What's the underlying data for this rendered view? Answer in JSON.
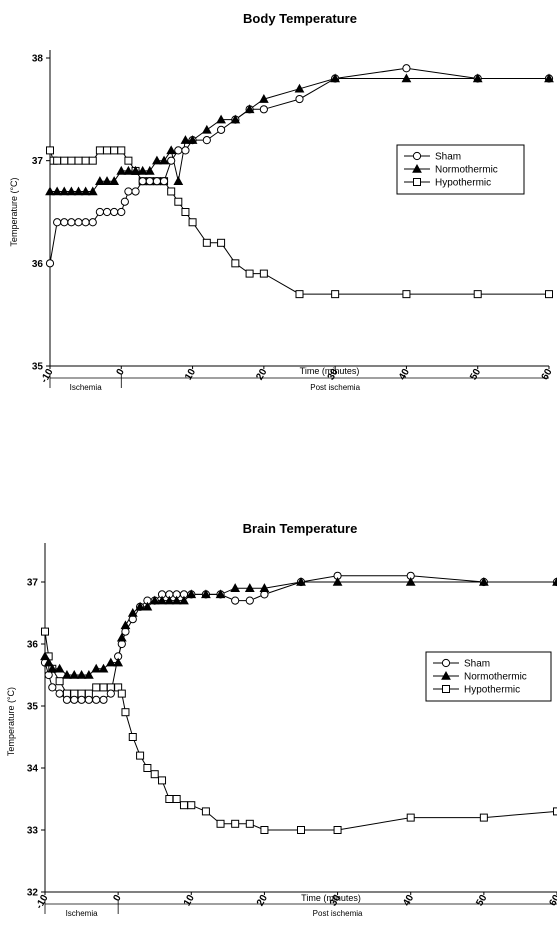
{
  "chart_data": [
    {
      "type": "line",
      "title": "Body Temperature",
      "xlabel": "Time (minutes)",
      "ylabel": "Temperature (°C)",
      "xlim": [
        -10,
        60
      ],
      "ylim": [
        35,
        38
      ],
      "xticks": [
        "-10",
        "0",
        "10",
        "20",
        "30",
        "40",
        "50",
        "60"
      ],
      "yticks": [
        "35",
        "36",
        "37",
        "38"
      ],
      "phases": [
        "Ischemia",
        "Post ischemia"
      ],
      "legend_position": "right",
      "series": [
        {
          "name": "Sham",
          "marker": "circle",
          "x": [
            -10,
            -9,
            -8,
            -7,
            -6,
            -5,
            -4,
            -3,
            -2,
            -1,
            0,
            0.5,
            1,
            2,
            3,
            4,
            5,
            6,
            7,
            8,
            9,
            10,
            12,
            14,
            16,
            18,
            20,
            25,
            30,
            40,
            50,
            60
          ],
          "y": [
            36.0,
            36.4,
            36.4,
            36.4,
            36.4,
            36.4,
            36.4,
            36.5,
            36.5,
            36.5,
            36.5,
            36.6,
            36.7,
            36.7,
            36.8,
            36.8,
            36.8,
            36.8,
            37.0,
            37.1,
            37.1,
            37.2,
            37.2,
            37.3,
            37.4,
            37.5,
            37.5,
            37.6,
            37.8,
            37.9,
            37.8,
            37.8
          ]
        },
        {
          "name": "Normothermic",
          "marker": "triangle",
          "x": [
            -10,
            -9,
            -8,
            -7,
            -6,
            -5,
            -4,
            -3,
            -2,
            -1,
            0,
            1,
            2,
            3,
            4,
            5,
            6,
            7,
            8,
            9,
            10,
            12,
            14,
            16,
            18,
            20,
            25,
            30,
            40,
            50,
            60
          ],
          "y": [
            36.7,
            36.7,
            36.7,
            36.7,
            36.7,
            36.7,
            36.7,
            36.8,
            36.8,
            36.8,
            36.9,
            36.9,
            36.9,
            36.9,
            36.9,
            37.0,
            37.0,
            37.1,
            36.8,
            37.2,
            37.2,
            37.3,
            37.4,
            37.4,
            37.5,
            37.6,
            37.7,
            37.8,
            37.8,
            37.8,
            37.8
          ]
        },
        {
          "name": "Hypothermic",
          "marker": "square",
          "x": [
            -10,
            -9.5,
            -9,
            -8,
            -7,
            -6,
            -5,
            -4,
            -3,
            -2,
            -1,
            0,
            1,
            2,
            3,
            4,
            5,
            6,
            7,
            8,
            9,
            10,
            12,
            14,
            16,
            18,
            20,
            25,
            30,
            40,
            50,
            60
          ],
          "y": [
            37.1,
            37.0,
            37.0,
            37.0,
            37.0,
            37.0,
            37.0,
            37.0,
            37.1,
            37.1,
            37.1,
            37.1,
            37.0,
            36.9,
            36.8,
            36.8,
            36.8,
            36.8,
            36.7,
            36.6,
            36.5,
            36.4,
            36.2,
            36.2,
            36.0,
            35.9,
            35.9,
            35.7,
            35.7,
            35.7,
            35.7,
            35.7
          ]
        }
      ]
    },
    {
      "type": "line",
      "title": "Brain Temperature",
      "xlabel": "Time (minutes)",
      "ylabel": "Temperature (°C)",
      "xlim": [
        -10,
        60
      ],
      "ylim": [
        32,
        37.5
      ],
      "xticks": [
        "-10",
        "0",
        "10",
        "20",
        "30",
        "40",
        "50",
        "60"
      ],
      "yticks": [
        "32",
        "33",
        "34",
        "35",
        "36",
        "37"
      ],
      "phases": [
        "Ischemia",
        "Post ischemia"
      ],
      "legend_position": "right",
      "series": [
        {
          "name": "Sham",
          "marker": "circle",
          "x": [
            -10,
            -9.5,
            -9,
            -8,
            -7,
            -6,
            -5,
            -4,
            -3,
            -2,
            -1,
            0,
            0.5,
            1,
            2,
            3,
            4,
            5,
            6,
            7,
            8,
            9,
            10,
            12,
            14,
            16,
            18,
            20,
            25,
            30,
            40,
            50,
            60
          ],
          "y": [
            35.7,
            35.5,
            35.3,
            35.2,
            35.1,
            35.1,
            35.1,
            35.1,
            35.1,
            35.1,
            35.2,
            35.8,
            36.0,
            36.2,
            36.4,
            36.6,
            36.7,
            36.7,
            36.8,
            36.8,
            36.8,
            36.8,
            36.8,
            36.8,
            36.8,
            36.7,
            36.7,
            36.8,
            37.0,
            37.1,
            37.1,
            37.0,
            37.0
          ]
        },
        {
          "name": "Normothermic",
          "marker": "triangle",
          "x": [
            -10,
            -9.5,
            -9,
            -8,
            -7,
            -6,
            -5,
            -4,
            -3,
            -2,
            -1,
            0,
            0.5,
            1,
            2,
            3,
            4,
            5,
            6,
            7,
            8,
            9,
            10,
            12,
            14,
            16,
            18,
            20,
            25,
            30,
            40,
            50,
            60
          ],
          "y": [
            35.8,
            35.7,
            35.6,
            35.6,
            35.5,
            35.5,
            35.5,
            35.5,
            35.6,
            35.6,
            35.7,
            35.7,
            36.1,
            36.3,
            36.5,
            36.6,
            36.6,
            36.7,
            36.7,
            36.7,
            36.7,
            36.7,
            36.8,
            36.8,
            36.8,
            36.9,
            36.9,
            36.9,
            37.0,
            37.0,
            37.0,
            37.0,
            37.0
          ]
        },
        {
          "name": "Hypothermic",
          "marker": "square",
          "x": [
            -10,
            -9.5,
            -9,
            -8,
            -7,
            -6,
            -5,
            -4,
            -3,
            -2,
            -1,
            0,
            0.5,
            1,
            2,
            3,
            4,
            5,
            6,
            7,
            8,
            9,
            10,
            12,
            14,
            16,
            18,
            20,
            25,
            30,
            40,
            50,
            60
          ],
          "y": [
            36.2,
            35.8,
            35.6,
            35.4,
            35.2,
            35.2,
            35.2,
            35.2,
            35.3,
            35.3,
            35.3,
            35.3,
            35.2,
            34.9,
            34.5,
            34.2,
            34.0,
            33.9,
            33.8,
            33.5,
            33.5,
            33.4,
            33.4,
            33.3,
            33.1,
            33.1,
            33.1,
            33.0,
            33.0,
            33.0,
            33.2,
            33.2,
            33.3
          ]
        }
      ]
    }
  ]
}
